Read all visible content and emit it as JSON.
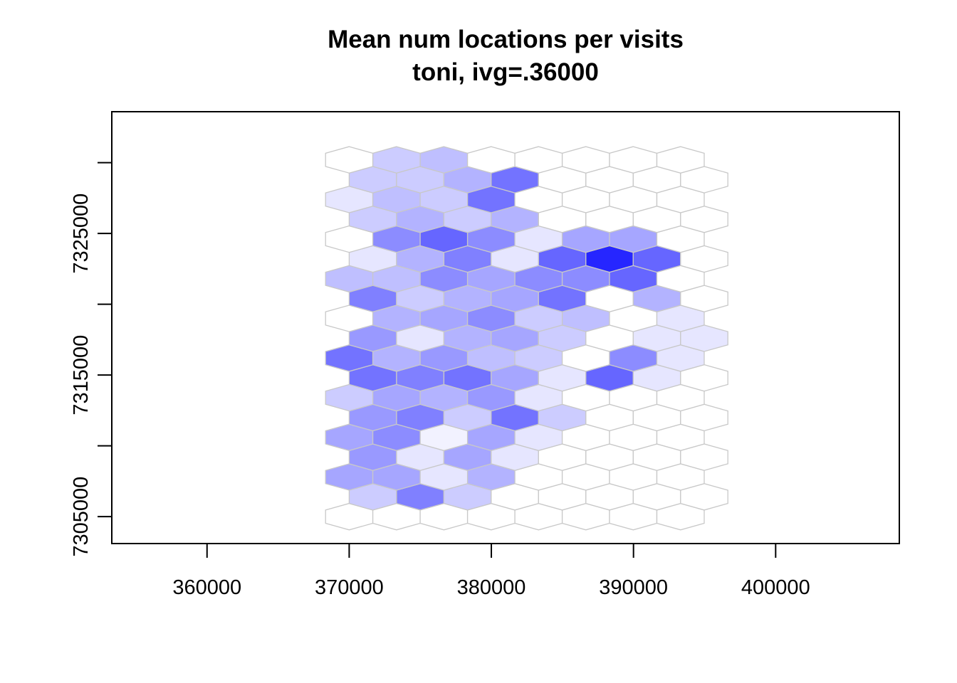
{
  "chart_data": {
    "type": "heatmap",
    "title": "Mean num locations per visits",
    "subtitle": "toni, ivg=.36000",
    "xlabel": "",
    "ylabel": "",
    "xlim": [
      353300,
      408700
    ],
    "ylim": [
      7303100,
      7333600
    ],
    "x_ticks": [
      360000,
      370000,
      380000,
      390000,
      400000
    ],
    "x_tick_labels": [
      "360000",
      "370000",
      "380000",
      "390000",
      "400000"
    ],
    "y_ticks": [
      7305000,
      7310000,
      7315000,
      7320000,
      7325000,
      7330000
    ],
    "y_tick_labels": [
      "7305000",
      "",
      "7315000",
      "",
      "7325000",
      ""
    ],
    "colors": {
      "max": "#0000FF",
      "min": "#FFFFFF",
      "cell_border": "#C8C8C8",
      "axis": "#000000"
    },
    "hex_grid": {
      "x_min": 370000,
      "dx": 3330,
      "y_min": 7305000,
      "dy": 1400,
      "columns": 8,
      "rows": 19,
      "rows_from_bottom": [
        [
          0,
          0,
          0,
          0,
          0,
          0,
          0,
          0
        ],
        [
          0.2,
          0.5,
          0.2,
          0,
          0,
          0,
          0,
          0
        ],
        [
          0.35,
          0.35,
          0.1,
          0.3,
          0,
          0,
          0,
          0
        ],
        [
          0.4,
          0.1,
          0.35,
          0.1,
          0,
          0,
          0,
          0
        ],
        [
          0.35,
          0.45,
          0.05,
          0.35,
          0.1,
          0,
          0,
          0
        ],
        [
          0.4,
          0.5,
          0.2,
          0.55,
          0.2,
          0,
          0,
          0
        ],
        [
          0.2,
          0.35,
          0.3,
          0.4,
          0.1,
          0,
          0,
          0
        ],
        [
          0.55,
          0.5,
          0.55,
          0.35,
          0.1,
          0.6,
          0.1,
          0
        ],
        [
          0.55,
          0.3,
          0.4,
          0.25,
          0.2,
          0,
          0.45,
          0.1
        ],
        [
          0.4,
          0.1,
          0.3,
          0.35,
          0.2,
          0,
          0.1,
          0.1
        ],
        [
          0,
          0.3,
          0.35,
          0.45,
          0.2,
          0.25,
          0,
          0.1
        ],
        [
          0.5,
          0.2,
          0.3,
          0.35,
          0.55,
          0,
          0.3,
          0
        ],
        [
          0.25,
          0.25,
          0.45,
          0.35,
          0.45,
          0.45,
          0.6,
          0
        ],
        [
          0.1,
          0.3,
          0.5,
          0.1,
          0.6,
          0.85,
          0.6,
          0
        ],
        [
          0,
          0.45,
          0.6,
          0.45,
          0.1,
          0.35,
          0.35,
          0
        ],
        [
          0.2,
          0.3,
          0.2,
          0.3,
          0,
          0,
          0,
          0
        ],
        [
          0.1,
          0.25,
          0.2,
          0.55,
          0,
          0,
          0,
          0
        ],
        [
          0.2,
          0.2,
          0.3,
          0.55,
          0,
          0,
          0,
          0
        ],
        [
          0,
          0.2,
          0.25,
          0,
          0,
          0,
          0,
          0
        ]
      ]
    }
  }
}
